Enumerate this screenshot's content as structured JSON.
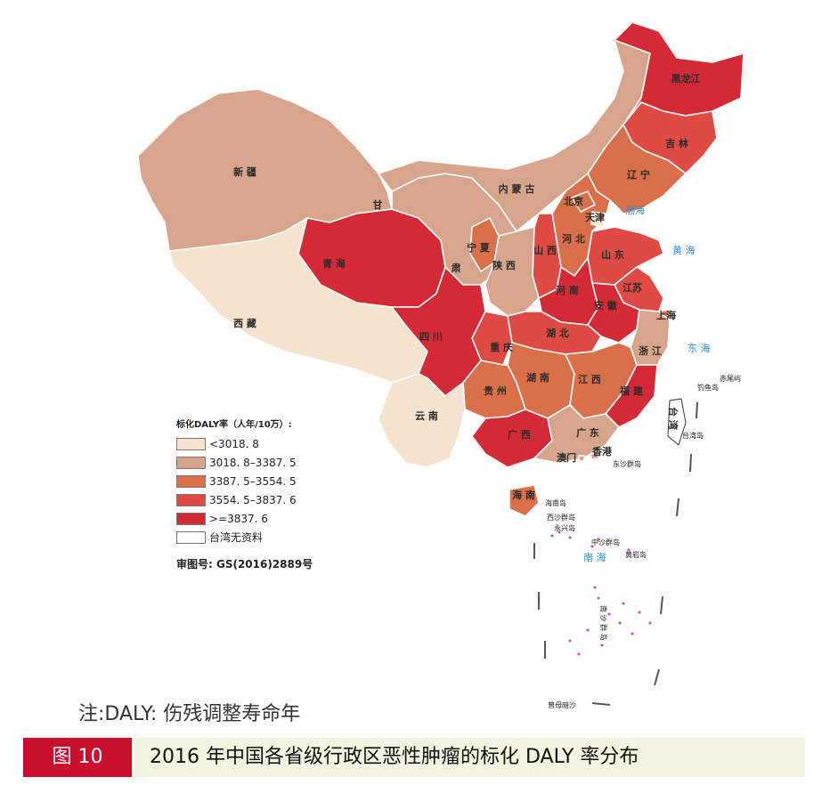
{
  "colors": {
    "band1": "#f4e3cf",
    "band2": "#d7a58b",
    "band3": "#d9704a",
    "band4": "#e04a45",
    "band5": "#d42a36",
    "nodata": "#ffffff",
    "accent": "#c8102e",
    "sea_text": "#2a8fd0"
  },
  "provinces": [
    {
      "key": "heilongjiang",
      "label": "黑龙江",
      "band": "band5"
    },
    {
      "key": "jilin",
      "label": "吉 林",
      "band": "band4"
    },
    {
      "key": "liaoning",
      "label": "辽 宁",
      "band": "band3"
    },
    {
      "key": "neimenggu",
      "label": "内 蒙 古",
      "band": "band2"
    },
    {
      "key": "xinjiang",
      "label": "新 疆",
      "band": "band2"
    },
    {
      "key": "xizang",
      "label": "西 藏",
      "band": "band1"
    },
    {
      "key": "qinghai",
      "label": "青 海",
      "band": "band5"
    },
    {
      "key": "gansu",
      "label": "甘",
      "band": "band2"
    },
    {
      "key": "gansu2",
      "label": "肃",
      "band": "band2"
    },
    {
      "key": "ningxia",
      "label": "宁 夏",
      "band": "band3"
    },
    {
      "key": "shaanxi",
      "label": "陕 西",
      "band": "band2"
    },
    {
      "key": "shanxi",
      "label": "山 西",
      "band": "band4"
    },
    {
      "key": "hebei",
      "label": "河 北",
      "band": "band3"
    },
    {
      "key": "beijing",
      "label": "北京",
      "band": "band3"
    },
    {
      "key": "tianjin",
      "label": "天津",
      "band": "band1"
    },
    {
      "key": "shandong",
      "label": "山 东",
      "band": "band4"
    },
    {
      "key": "henan",
      "label": "河 南",
      "band": "band5"
    },
    {
      "key": "jiangsu",
      "label": "江苏",
      "band": "band4"
    },
    {
      "key": "anhui",
      "label": "安 徽",
      "band": "band5"
    },
    {
      "key": "shanghai",
      "label": "上海",
      "band": "band3"
    },
    {
      "key": "zhejiang",
      "label": "浙 江",
      "band": "band2"
    },
    {
      "key": "sichuan",
      "label": "四 川",
      "band": "band5"
    },
    {
      "key": "chongqing",
      "label": "重 庆",
      "band": "band4"
    },
    {
      "key": "hubei",
      "label": "湖 北",
      "band": "band4"
    },
    {
      "key": "hunan",
      "label": "湖 南",
      "band": "band3"
    },
    {
      "key": "jiangxi",
      "label": "江 西",
      "band": "band3"
    },
    {
      "key": "fujian",
      "label": "福 建",
      "band": "band5"
    },
    {
      "key": "guizhou",
      "label": "贵 州",
      "band": "band3"
    },
    {
      "key": "yunnan",
      "label": "云 南",
      "band": "band1"
    },
    {
      "key": "guangxi",
      "label": "广 西",
      "band": "band5"
    },
    {
      "key": "guangdong",
      "label": "广 东",
      "band": "band2"
    },
    {
      "key": "hainan",
      "label": "海 南",
      "band": "band3"
    },
    {
      "key": "taiwan",
      "label": "台 湾",
      "band": "nodata"
    },
    {
      "key": "xianggang",
      "label": "香港",
      "band": "band2"
    },
    {
      "key": "aomen",
      "label": "澳门",
      "band": "band2"
    }
  ],
  "seas": {
    "bohai": "渤海",
    "huanghai": "黄 海",
    "donghai": "东 海",
    "nanhai": "南 海"
  },
  "islands": {
    "diaoyu": "钓鱼岛",
    "chiwei": "赤尾屿",
    "taiwan_dao": "台湾岛",
    "dongsha": "东沙群岛",
    "hainan_dao": "海南岛",
    "xisha": "西沙群岛",
    "yongxing": "永兴岛",
    "zhongsha": "中沙群岛",
    "huangyan": "黄岩岛",
    "nansha": "南 沙 群 岛",
    "zengmu": "曾母暗沙"
  },
  "legend": {
    "title": "标化DALY率（人年/10万）:",
    "items": [
      {
        "label": "<3018. 8",
        "band": "band1"
      },
      {
        "label": "3018. 8–3387. 5",
        "band": "band2"
      },
      {
        "label": "3387. 5–3554. 5",
        "band": "band3"
      },
      {
        "label": "3554. 5–3837. 6",
        "band": "band4"
      },
      {
        "label": ">=3837. 6",
        "band": "band5"
      },
      {
        "label": "台湾无资料",
        "band": "nodata"
      }
    ],
    "approval": "审图号: GS(2016)2889号"
  },
  "note": "注:DALY: 伤残调整寿命年",
  "figure": {
    "number": "图 10",
    "caption": "2016 年中国各省级行政区恶性肿瘤的标化 DALY 率分布"
  }
}
